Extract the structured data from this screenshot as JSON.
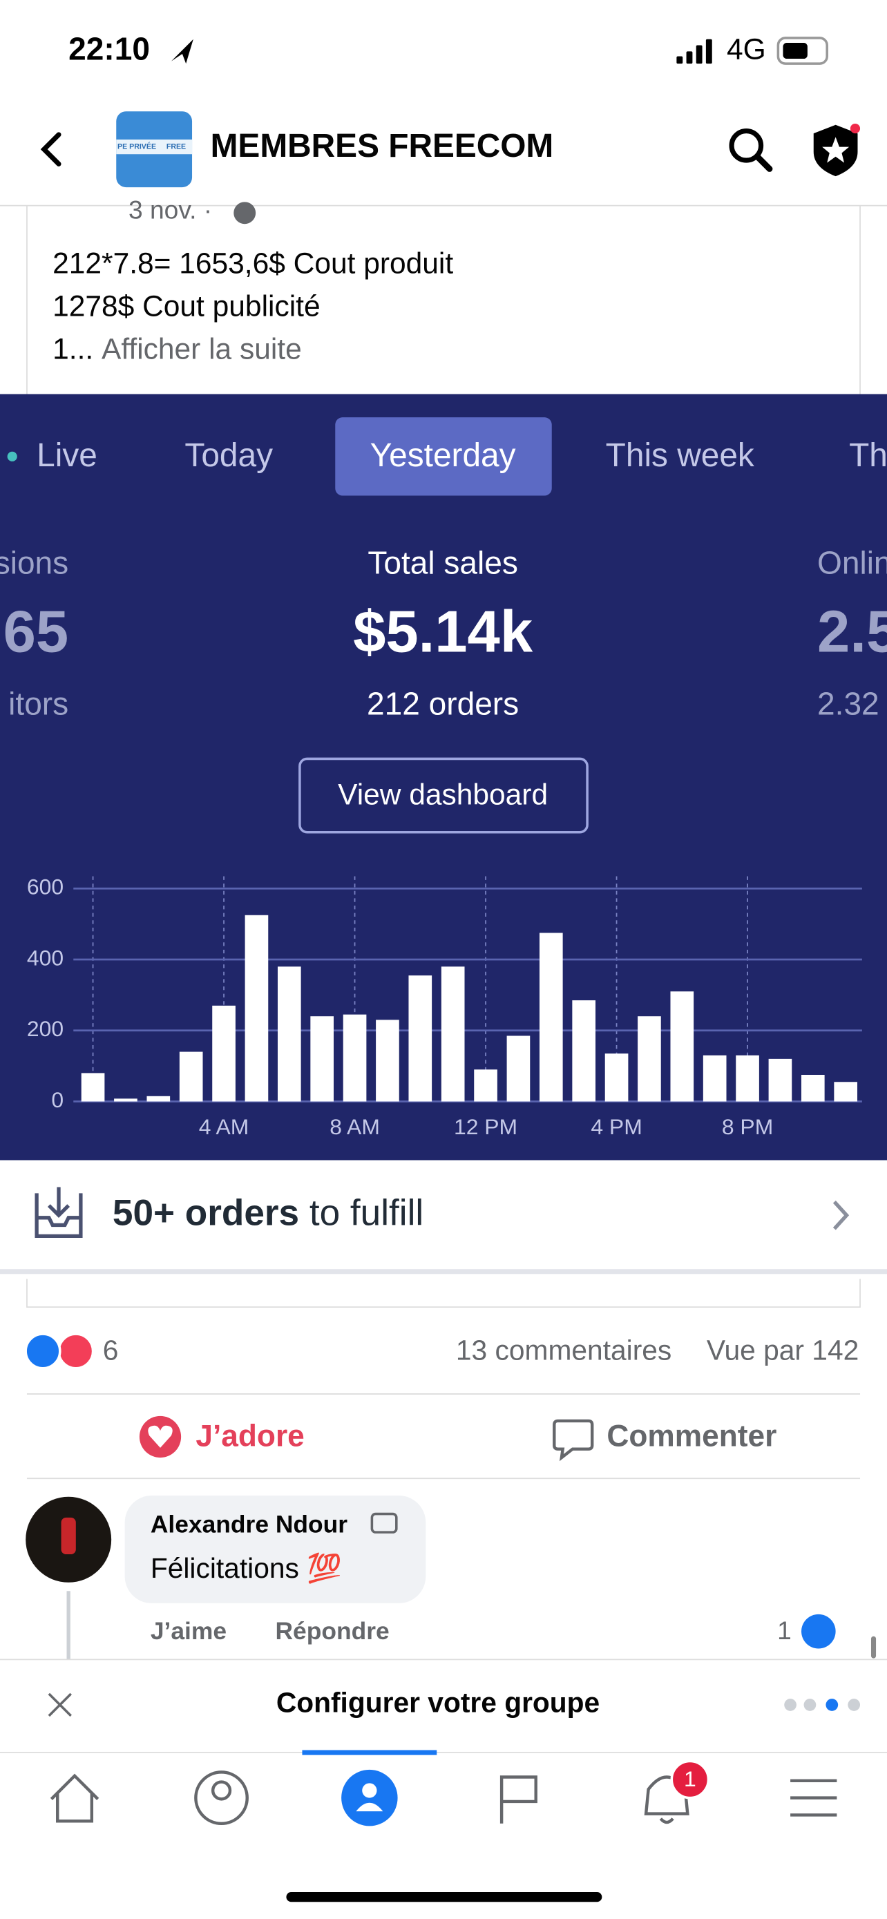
{
  "status": {
    "time": "22:10",
    "network": "4G"
  },
  "header": {
    "title": "MEMBRES FREECOM",
    "badge_left": "PE PRIVÉE",
    "badge_right": "FREE"
  },
  "post": {
    "date": "3 nov. ·",
    "lines": [
      "212*7.8= 1653,6$ Cout produit",
      "1278$ Cout publicité"
    ],
    "truncated": "1...",
    "more": "Afficher la suite"
  },
  "dashboard": {
    "tabs": [
      "Live",
      "Today",
      "Yesterday",
      "This week",
      "Th"
    ],
    "active_tab": 2,
    "left": {
      "label": "sions",
      "value": "65",
      "sub": "itors"
    },
    "center": {
      "label": "Total sales",
      "value": "$5.14k",
      "sub": "212 orders"
    },
    "right": {
      "label": "Onlin",
      "value": "2.5",
      "sub": "2.32"
    },
    "button": "View dashboard",
    "fulfill": {
      "bold": "50+ orders",
      "rest": "to fulfill"
    }
  },
  "chart_data": {
    "type": "bar",
    "color": "#ffffff",
    "categories": [
      null,
      null,
      null,
      null,
      "4 AM",
      null,
      null,
      null,
      "8 AM",
      null,
      null,
      null,
      "12 PM",
      null,
      null,
      null,
      "4 PM",
      null,
      null,
      null,
      "8 PM",
      null,
      null,
      null
    ],
    "values": [
      80,
      8,
      15,
      140,
      270,
      525,
      380,
      240,
      245,
      230,
      355,
      380,
      90,
      185,
      475,
      285,
      135,
      240,
      310,
      130,
      130,
      120,
      75,
      55
    ],
    "ylim": [
      0,
      600
    ],
    "yticks": [
      0,
      200,
      400,
      600
    ],
    "grid": true
  },
  "reactions": {
    "count": "6",
    "comments": "13 commentaires",
    "views": "Vue par 142"
  },
  "actions": {
    "love": "J’adore",
    "comment": "Commenter"
  },
  "comment": {
    "author": "Alexandre Ndour",
    "text": "Félicitations 💯",
    "like": "J’aime",
    "reply": "Répondre",
    "likes": "1"
  },
  "setup": {
    "title": "Configurer votre groupe"
  },
  "tabbar": {
    "notifications": "1"
  }
}
